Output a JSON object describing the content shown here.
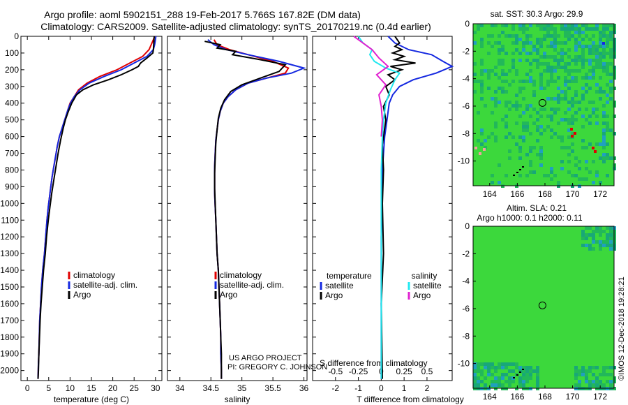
{
  "header": {
    "line1": "Argo profile: aoml 5902151_288 19-Feb-2017 5.766S 167.82E (DM data)",
    "line2": "Climatology: CARS2009. Satellite-adjusted climatology: synTS_20170219.nc (0.4d earlier)"
  },
  "footer": {
    "project": "US ARGO PROJECT",
    "pi": "PI: GREGORY C. JOHNSON",
    "imos": "©IMOS 12-Dec-2018 19:28:21"
  },
  "colors": {
    "climatology": "#e00000",
    "satellite": "#1428e0",
    "argo": "#000000",
    "sat_salinity": "#20e8f0",
    "argo_salinity": "#e020d0",
    "map_bg": "#3cd83c"
  },
  "chart_data": [
    {
      "type": "line",
      "title": "",
      "xlabel": "temperature (deg C)",
      "ylabel": "",
      "xlim": [
        -1.5,
        31.5
      ],
      "ylim": [
        2060,
        0
      ],
      "x_ticks": [
        "0",
        "5",
        "10",
        "15",
        "20",
        "25",
        "30"
      ],
      "y_ticks": [
        "0",
        "100",
        "200",
        "300",
        "400",
        "500",
        "600",
        "700",
        "800",
        "900",
        "1000",
        "1100",
        "1200",
        "1300",
        "1400",
        "1500",
        "1600",
        "1700",
        "1800",
        "1900",
        "2000"
      ],
      "legend": [
        "climatology",
        "satellite-adj. clim.",
        "Argo"
      ],
      "series": [
        {
          "name": "climatology",
          "color": "#e00000",
          "x": [
            29.8,
            29.5,
            29,
            28.5,
            27,
            24,
            21,
            17,
            14,
            12,
            11,
            10,
            9.5,
            9,
            8.5,
            8,
            7.5,
            7,
            6.6,
            6.2,
            5.8,
            5.5,
            5.2,
            4.9,
            4.6,
            4.3,
            4.0,
            3.6,
            3.3,
            3.1,
            2.9,
            2.8,
            2.7,
            2.6,
            2.55,
            2.5
          ],
          "depth": [
            0,
            20,
            50,
            80,
            120,
            160,
            200,
            240,
            280,
            320,
            360,
            400,
            440,
            480,
            520,
            560,
            600,
            660,
            720,
            780,
            840,
            900,
            960,
            1020,
            1100,
            1200,
            1300,
            1400,
            1500,
            1600,
            1700,
            1800,
            1900,
            1950,
            2000,
            2050
          ]
        },
        {
          "name": "satellite-adj. clim.",
          "color": "#1428e0",
          "x": [
            30.1,
            30,
            29.8,
            29.5,
            28,
            25,
            22,
            18,
            14.5,
            12.3,
            11,
            10.1,
            9.5,
            9,
            8.5,
            8,
            7.5,
            7,
            6.6,
            6.2,
            5.8,
            5.5,
            5.2,
            4.9,
            4.6,
            4.3,
            4.0,
            3.6,
            3.3,
            3.1,
            2.9,
            2.8,
            2.7,
            2.6,
            2.55,
            2.5
          ],
          "depth": [
            0,
            20,
            50,
            80,
            120,
            160,
            200,
            240,
            280,
            320,
            360,
            400,
            440,
            480,
            520,
            560,
            600,
            660,
            720,
            780,
            840,
            900,
            960,
            1020,
            1100,
            1200,
            1300,
            1400,
            1500,
            1600,
            1700,
            1800,
            1900,
            1950,
            2000,
            2050
          ]
        },
        {
          "name": "Argo",
          "color": "#000000",
          "x": [
            29.7,
            29.6,
            29.5,
            29.4,
            28,
            26.5,
            26,
            24.5,
            22,
            19,
            15.5,
            13,
            11.5,
            10.4,
            9.6,
            8.9,
            8.4,
            7.8,
            7.2,
            6.7,
            6.2,
            5.7,
            5.3,
            4.9,
            4.5,
            4.2,
            3.8,
            3.5,
            3.2,
            3.0,
            2.85,
            2.7,
            2.6,
            2.5
          ],
          "depth": [
            0,
            40,
            80,
            100,
            130,
            160,
            180,
            200,
            230,
            260,
            290,
            320,
            350,
            400,
            450,
            500,
            550,
            620,
            700,
            780,
            860,
            940,
            1020,
            1100,
            1200,
            1300,
            1400,
            1500,
            1600,
            1700,
            1800,
            1900,
            2000,
            2050
          ]
        }
      ]
    },
    {
      "type": "line",
      "xlabel": "salinity",
      "xlim": [
        33.8,
        36.05
      ],
      "ylim": [
        2060,
        0
      ],
      "x_ticks": [
        "34",
        "34.5",
        "35",
        "35.5",
        "36"
      ],
      "legend": [
        "climatology",
        "satellite-adj. clim.",
        "Argo"
      ],
      "series": [
        {
          "name": "climatology",
          "color": "#e00000",
          "x": [
            34.55,
            34.6,
            34.8,
            35.1,
            35.5,
            35.75,
            35.7,
            35.4,
            35.1,
            34.9,
            34.78,
            34.7,
            34.65,
            34.62,
            34.6,
            34.58,
            34.57,
            34.56,
            34.56,
            34.56,
            34.57,
            34.58,
            34.59,
            34.6,
            34.62,
            34.63,
            34.64,
            34.65,
            34.66,
            34.66,
            34.67,
            34.67
          ],
          "depth": [
            20,
            50,
            80,
            110,
            150,
            190,
            220,
            250,
            280,
            320,
            360,
            400,
            450,
            500,
            560,
            620,
            700,
            780,
            860,
            940,
            1020,
            1100,
            1200,
            1300,
            1400,
            1500,
            1600,
            1700,
            1800,
            1900,
            2000,
            2050
          ]
        },
        {
          "name": "satellite-adj. clim.",
          "color": "#1428e0",
          "x": [
            34.45,
            34.55,
            34.75,
            35.1,
            35.6,
            36.0,
            35.8,
            35.4,
            35.1,
            34.9,
            34.78,
            34.7,
            34.65,
            34.62,
            34.6,
            34.58,
            34.57,
            34.56,
            34.56,
            34.56,
            34.57,
            34.58,
            34.59,
            34.6,
            34.62,
            34.63,
            34.64,
            34.65,
            34.66,
            34.66,
            34.67,
            34.67
          ],
          "depth": [
            20,
            50,
            80,
            110,
            150,
            190,
            220,
            250,
            280,
            320,
            360,
            400,
            450,
            500,
            560,
            620,
            700,
            780,
            860,
            940,
            1020,
            1100,
            1200,
            1300,
            1400,
            1500,
            1600,
            1700,
            1800,
            1900,
            2000,
            2050
          ]
        },
        {
          "name": "Argo",
          "color": "#000000",
          "x": [
            34.4,
            34.65,
            34.6,
            34.9,
            34.85,
            35.3,
            35.7,
            35.6,
            35.3,
            35.0,
            34.82,
            34.72,
            34.66,
            34.62,
            34.6,
            34.58,
            34.57,
            34.56,
            34.56,
            34.57,
            34.58,
            34.59,
            34.6,
            34.62,
            34.63,
            34.64,
            34.65,
            34.66,
            34.67,
            34.67
          ],
          "depth": [
            30,
            50,
            70,
            90,
            110,
            140,
            170,
            210,
            250,
            290,
            330,
            380,
            430,
            490,
            560,
            640,
            730,
            820,
            910,
            1000,
            1100,
            1200,
            1300,
            1400,
            1500,
            1600,
            1700,
            1800,
            1900,
            2050
          ]
        }
      ]
    },
    {
      "type": "line",
      "xlabel": "T difference from climatology",
      "secondary_xlabel": "S difference from climatology",
      "xlim": [
        -3,
        3.1
      ],
      "ylim": [
        2060,
        0
      ],
      "x_ticks": [
        "-2",
        "-1",
        "0",
        "1",
        "2"
      ],
      "secondary_x_ticks": [
        "-0.5",
        "-0.25",
        "0",
        "0.25",
        "0.5"
      ],
      "legend_left_title": "temperature",
      "legend_right_title": "salinity",
      "legend_left": [
        "satellite",
        "Argo"
      ],
      "legend_right": [
        "satellite",
        "Argo"
      ],
      "series": [
        {
          "name": "T satellite",
          "color": "#1428e0",
          "x": [
            0.3,
            0.6,
            1.2,
            2.2,
            2.7,
            3.1,
            2.4,
            1.4,
            0.8,
            0.5,
            0.35,
            0.3,
            0.25,
            0.15,
            0.1,
            0.05,
            0.05,
            0.0,
            0.0,
            0.0,
            0.0,
            0.0
          ],
          "depth": [
            0,
            40,
            80,
            110,
            150,
            180,
            220,
            260,
            300,
            350,
            400,
            450,
            500,
            600,
            700,
            800,
            1000,
            1200,
            1400,
            1600,
            1800,
            2050
          ]
        },
        {
          "name": "T Argo",
          "color": "#000000",
          "x": [
            0.6,
            0.7,
            0.8,
            0.6,
            0.9,
            0.5,
            1.0,
            0.6,
            1.5,
            0.4,
            0.9,
            0.3,
            0.6,
            0.2,
            0.35,
            0.1,
            0.2,
            0.05,
            0.1,
            0.05,
            0.1,
            0.0,
            0.05
          ],
          "depth": [
            0,
            20,
            40,
            60,
            80,
            100,
            120,
            140,
            160,
            180,
            200,
            230,
            260,
            300,
            350,
            420,
            500,
            650,
            800,
            1000,
            1300,
            1600,
            2050
          ]
        },
        {
          "name": "S satellite",
          "color": "#20e8f0",
          "x": [
            -1.0,
            -0.8,
            -0.4,
            -0.5,
            -0.3,
            0.2,
            0.8,
            0.6,
            0.4,
            0.2,
            0.1,
            0.05,
            0.0,
            0.0,
            0.0,
            0.0,
            0.0
          ],
          "depth": [
            0,
            40,
            80,
            110,
            150,
            190,
            220,
            260,
            320,
            400,
            500,
            600,
            800,
            1000,
            1400,
            1800,
            2050
          ]
        },
        {
          "name": "S Argo",
          "color": "#e020d0",
          "x": [
            -1.2,
            -0.9,
            -0.4,
            -0.1,
            0.3,
            -0.2,
            0.2,
            -0.1,
            0.0,
            0.05,
            0.0
          ],
          "depth": [
            0,
            30,
            80,
            130,
            180,
            230,
            290,
            350,
            420,
            500,
            600
          ]
        }
      ]
    },
    {
      "type": "heatmap",
      "title": "sat. SST: 30.3 Argo: 29.9",
      "x_ticks": [
        "164",
        "166",
        "168",
        "170",
        "172"
      ],
      "y_ticks": [
        "0",
        "-2",
        "-4",
        "-6",
        "-8",
        "-10"
      ],
      "xlim": [
        162.8,
        173.0
      ],
      "ylim": [
        -11.8,
        0
      ],
      "marker": {
        "lon": 167.82,
        "lat": -5.766
      }
    },
    {
      "type": "heatmap",
      "title": "Altim. SLA: 0.21",
      "subtitle": "Argo h1000: 0.1 h2000: 0.11",
      "x_ticks": [
        "164",
        "166",
        "168",
        "170",
        "172"
      ],
      "y_ticks": [
        "0",
        "-2",
        "-4",
        "-6",
        "-8",
        "-10"
      ],
      "xlim": [
        162.8,
        173.0
      ],
      "ylim": [
        -11.8,
        0
      ],
      "marker": {
        "lon": 167.82,
        "lat": -5.766
      }
    }
  ]
}
